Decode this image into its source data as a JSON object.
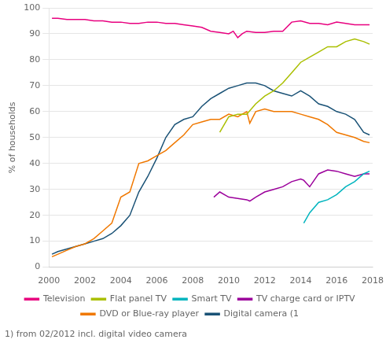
{
  "chart_data": {
    "type": "line",
    "ylabel": "% of households",
    "annotations": [
      "1) from 02/2012 incl. digital video camera"
    ],
    "xlim": [
      2000,
      2018
    ],
    "ylim": [
      0,
      100
    ],
    "xticks": [
      2000,
      2002,
      2004,
      2006,
      2008,
      2010,
      2012,
      2014,
      2016,
      2018
    ],
    "yticks": [
      0,
      10,
      20,
      30,
      40,
      50,
      60,
      70,
      80,
      90,
      100
    ],
    "grid": true,
    "legend": "bottom",
    "series": [
      {
        "name": "Television",
        "color": "#e8007f",
        "x": [
          2000.17,
          2000.5,
          2001.0,
          2001.5,
          2002.0,
          2002.5,
          2003.0,
          2003.5,
          2004.0,
          2004.5,
          2005.0,
          2005.5,
          2006.0,
          2006.5,
          2007.0,
          2007.5,
          2008.0,
          2008.5,
          2009.0,
          2009.5,
          2010.0,
          2010.25,
          2010.5,
          2010.75,
          2011.0,
          2011.5,
          2012.0,
          2012.5,
          2013.0,
          2013.5,
          2014.0,
          2014.5,
          2015.0,
          2015.5,
          2016.0,
          2016.5,
          2017.0,
          2017.83
        ],
        "values": [
          96,
          96,
          95.5,
          95.5,
          95.5,
          95,
          95,
          94.5,
          94.5,
          94,
          94,
          94.5,
          94.5,
          94,
          94,
          93.5,
          93,
          92.5,
          91,
          90.5,
          90,
          91,
          88.5,
          90,
          91,
          90.5,
          90.5,
          91,
          91,
          94.5,
          95,
          94,
          94,
          93.5,
          94.5,
          94,
          93.5,
          93.5
        ]
      },
      {
        "name": "Flat panel TV",
        "color": "#aabf00",
        "x": [
          2009.5,
          2010.0,
          2010.5,
          2011.0,
          2011.5,
          2012.0,
          2012.5,
          2013.0,
          2013.5,
          2014.0,
          2014.5,
          2015.0,
          2015.5,
          2016.0,
          2016.5,
          2017.0,
          2017.5,
          2017.83
        ],
        "values": [
          52,
          58,
          59,
          59,
          63,
          66,
          68,
          71,
          75,
          79,
          81,
          83,
          85,
          85,
          87,
          88,
          87,
          86
        ]
      },
      {
        "name": "Smart TV",
        "color": "#00b4be",
        "x": [
          2014.17,
          2014.5,
          2015.0,
          2015.5,
          2016.0,
          2016.5,
          2017.0,
          2017.5,
          2017.83
        ],
        "values": [
          17,
          21,
          25,
          26,
          28,
          31,
          33,
          36,
          37
        ]
      },
      {
        "name": "TV charge card or IPTV",
        "color": "#9b009b",
        "x": [
          2009.17,
          2009.5,
          2010.0,
          2010.5,
          2011.0,
          2011.17,
          2011.5,
          2012.0,
          2012.5,
          2013.0,
          2013.5,
          2014.0,
          2014.17,
          2014.5,
          2015.0,
          2015.5,
          2016.0,
          2016.5,
          2017.0,
          2017.5,
          2017.83
        ],
        "values": [
          27,
          29,
          27,
          26.5,
          26,
          25.5,
          27,
          29,
          30,
          31,
          33,
          34,
          33.5,
          31,
          36,
          37.5,
          37,
          36,
          35,
          36,
          36
        ]
      },
      {
        "name": "DVD or Blue-ray player",
        "color": "#f07800",
        "x": [
          2000.17,
          2000.5,
          2001.0,
          2001.5,
          2002.0,
          2002.5,
          2003.0,
          2003.5,
          2004.0,
          2004.5,
          2005.0,
          2005.5,
          2006.0,
          2006.5,
          2007.0,
          2007.5,
          2008.0,
          2008.5,
          2009.0,
          2009.5,
          2010.0,
          2010.5,
          2011.0,
          2011.17,
          2011.5,
          2012.0,
          2012.5,
          2013.0,
          2013.5,
          2014.0,
          2014.5,
          2015.0,
          2015.5,
          2016.0,
          2016.5,
          2017.0,
          2017.5,
          2017.83
        ],
        "values": [
          4,
          5,
          6.5,
          8,
          9,
          11,
          14,
          17,
          27,
          29,
          40,
          41,
          43,
          45,
          48,
          51,
          55,
          56,
          57,
          57,
          59,
          58,
          60,
          55.5,
          60,
          61,
          60,
          60,
          60,
          59,
          58,
          57,
          55,
          52,
          51,
          50,
          48.5,
          48
        ]
      },
      {
        "name": "Digital camera (1",
        "color": "#1a5276",
        "x": [
          2000.17,
          2000.5,
          2001.0,
          2001.5,
          2002.0,
          2002.5,
          2003.0,
          2003.5,
          2004.0,
          2004.5,
          2005.0,
          2005.5,
          2006.0,
          2006.5,
          2007.0,
          2007.5,
          2008.0,
          2008.5,
          2009.0,
          2009.5,
          2010.0,
          2010.5,
          2011.0,
          2011.5,
          2012.0,
          2012.5,
          2013.0,
          2013.5,
          2014.0,
          2014.5,
          2015.0,
          2015.5,
          2016.0,
          2016.5,
          2017.0,
          2017.5,
          2017.83
        ],
        "values": [
          5,
          6,
          7,
          8,
          9,
          10,
          11,
          13,
          16,
          20,
          29,
          35,
          42,
          50,
          55,
          57,
          58,
          62,
          65,
          67,
          69,
          70,
          71,
          71,
          70,
          68,
          67,
          66,
          68,
          66,
          63,
          62,
          60,
          59,
          57,
          52,
          51
        ]
      }
    ]
  }
}
